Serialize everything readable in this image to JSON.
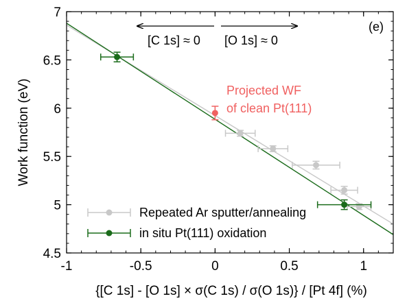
{
  "chart_data": {
    "type": "scatter",
    "xlabel": "{[C 1s] - [O 1s] × σ(C 1s) / σ(O 1s)} / [Pt 4f] (%)",
    "ylabel": "Work function (eV)",
    "xlim": [
      -1,
      1.2
    ],
    "ylim": [
      4.5,
      7
    ],
    "xticks": [
      -1,
      -0.5,
      0,
      0.5,
      1
    ],
    "xtick_labels": [
      "-1",
      "-0.5",
      "0",
      "0.5",
      "1"
    ],
    "yticks": [
      4.5,
      5,
      5.5,
      6,
      6.5,
      7
    ],
    "ytick_labels": [
      "4.5",
      "5",
      "5.5",
      "6",
      "6.5",
      "7"
    ],
    "panel_label": "(e)",
    "annotations": {
      "left_arrow_text": "[C 1s] ≈ 0",
      "right_arrow_text": "[O 1s] ≈ 0",
      "projected_line1": "Projected WF",
      "projected_line2": "of clean Pt(111)"
    },
    "colors": {
      "gray": "#c8c8c8",
      "green": "#1a6b1a",
      "red": "#f06060"
    },
    "series": [
      {
        "name": "Repeated Ar sputter/annealing",
        "color": "#c8c8c8",
        "points": [
          {
            "x": 0.17,
            "y": 5.74,
            "xerr": 0.1,
            "yerr": 0.03
          },
          {
            "x": 0.39,
            "y": 5.58,
            "xerr": 0.1,
            "yerr": 0.03
          },
          {
            "x": 0.68,
            "y": 5.41,
            "xerr": 0.16,
            "yerr": 0.04
          },
          {
            "x": 0.87,
            "y": 5.15,
            "xerr": 0.09,
            "yerr": 0.04
          },
          {
            "x": 0.97,
            "y": 4.98,
            "xerr": 0.08,
            "yerr": 0.03
          }
        ],
        "fit": {
          "x": [
            -1,
            1.2
          ],
          "y": [
            6.86,
            4.8
          ]
        }
      },
      {
        "name": "in situ Pt(111) oxidation",
        "color": "#1a6b1a",
        "points": [
          {
            "x": -0.66,
            "y": 6.53,
            "xerr": 0.11,
            "yerr": 0.05
          },
          {
            "x": 0.87,
            "y": 5.0,
            "xerr": 0.18,
            "yerr": 0.05
          }
        ],
        "fit": {
          "x": [
            -1,
            1.2
          ],
          "y": [
            6.88,
            4.69
          ]
        }
      },
      {
        "name": "",
        "color": "#f06060",
        "points": [
          {
            "x": 0.0,
            "y": 5.95,
            "xerr": 0,
            "yerr": 0.07
          }
        ]
      }
    ]
  }
}
